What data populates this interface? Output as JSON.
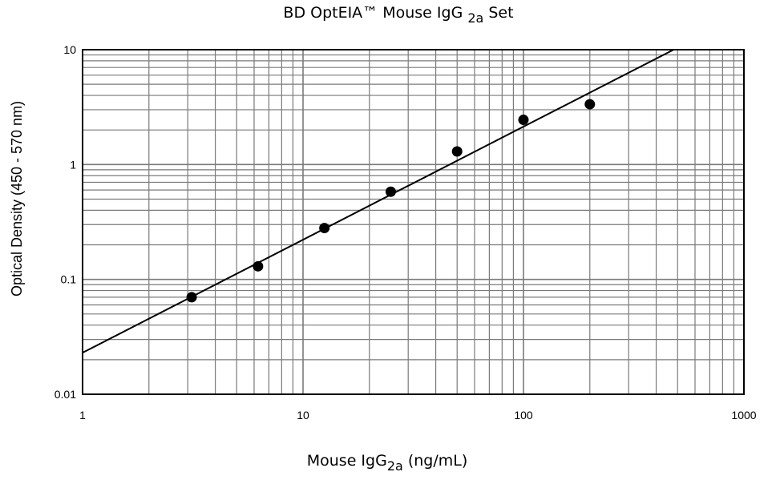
{
  "chart_data": {
    "type": "scatter",
    "title": {
      "prefix": "BD  OptEIA™  Mouse  IgG ",
      "subscript": "2a",
      "suffix": " Set"
    },
    "xlabel": {
      "prefix": "Mouse  IgG",
      "subscript": "2a",
      "suffix": " (ng/mL)"
    },
    "ylabel": "Optical Density (450  -  570 nm)",
    "x_scale": "log",
    "y_scale": "log",
    "xlim": [
      1,
      1000
    ],
    "ylim": [
      0.01,
      10
    ],
    "x_ticks": [
      1,
      10,
      100,
      1000
    ],
    "x_tick_labels": [
      "1",
      "10",
      "100",
      "1000"
    ],
    "y_ticks": [
      0.01,
      0.1,
      1,
      10
    ],
    "y_tick_labels": [
      "0.01",
      "0.1",
      "1",
      "10"
    ],
    "grid": true,
    "legend": "none",
    "series": [
      {
        "kind": "points",
        "x": [
          3.125,
          6.25,
          12.5,
          25,
          50,
          100,
          200
        ],
        "y": [
          0.07,
          0.13,
          0.28,
          0.58,
          1.3,
          2.45,
          3.35
        ]
      },
      {
        "kind": "fit-line",
        "x": [
          1,
          480
        ],
        "y": [
          0.023,
          10
        ]
      }
    ],
    "colors": {
      "line": "#000000",
      "points": "#000000",
      "grid": "#7a7a7a"
    }
  }
}
